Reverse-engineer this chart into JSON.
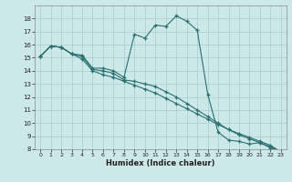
{
  "xlabel": "Humidex (Indice chaleur)",
  "xlim": [
    -0.5,
    23.5
  ],
  "ylim": [
    8,
    19
  ],
  "yticks": [
    8,
    9,
    10,
    11,
    12,
    13,
    14,
    15,
    16,
    17,
    18
  ],
  "xticks": [
    0,
    1,
    2,
    3,
    4,
    5,
    6,
    7,
    8,
    9,
    10,
    11,
    12,
    13,
    14,
    15,
    16,
    17,
    18,
    19,
    20,
    21,
    22,
    23
  ],
  "background_color": "#cde8e8",
  "grid_color": "#a8cccc",
  "line_color": "#2a7070",
  "line1_x": [
    0,
    1,
    2,
    3,
    4,
    5,
    6,
    7,
    8,
    9,
    10,
    11,
    12,
    13,
    14,
    15,
    16,
    17,
    18,
    19,
    20,
    21,
    22,
    23
  ],
  "line1_y": [
    15.1,
    15.9,
    15.8,
    15.3,
    15.2,
    14.2,
    14.2,
    14.0,
    13.5,
    16.8,
    16.5,
    17.5,
    17.4,
    18.2,
    17.8,
    17.1,
    12.2,
    9.3,
    8.7,
    8.6,
    8.4,
    8.5,
    8.1,
    7.8
  ],
  "line2_x": [
    0,
    1,
    2,
    3,
    4,
    5,
    6,
    7,
    8,
    9,
    10,
    11,
    12,
    13,
    14,
    15,
    16,
    17,
    18,
    19,
    20,
    21,
    22,
    23
  ],
  "line2_y": [
    15.1,
    15.9,
    15.8,
    15.3,
    15.1,
    14.1,
    14.0,
    13.8,
    13.3,
    13.2,
    13.0,
    12.8,
    12.4,
    12.0,
    11.5,
    11.0,
    10.5,
    10.0,
    9.5,
    9.2,
    8.9,
    8.6,
    8.3,
    7.8
  ],
  "line3_x": [
    0,
    1,
    2,
    3,
    4,
    5,
    6,
    7,
    8,
    9,
    10,
    11,
    12,
    13,
    14,
    15,
    16,
    17,
    18,
    19,
    20,
    21,
    22,
    23
  ],
  "line3_y": [
    15.1,
    15.9,
    15.8,
    15.3,
    14.9,
    14.0,
    13.7,
    13.5,
    13.2,
    12.9,
    12.6,
    12.3,
    11.9,
    11.5,
    11.1,
    10.7,
    10.3,
    9.9,
    9.5,
    9.1,
    8.8,
    8.5,
    8.2,
    7.8
  ]
}
